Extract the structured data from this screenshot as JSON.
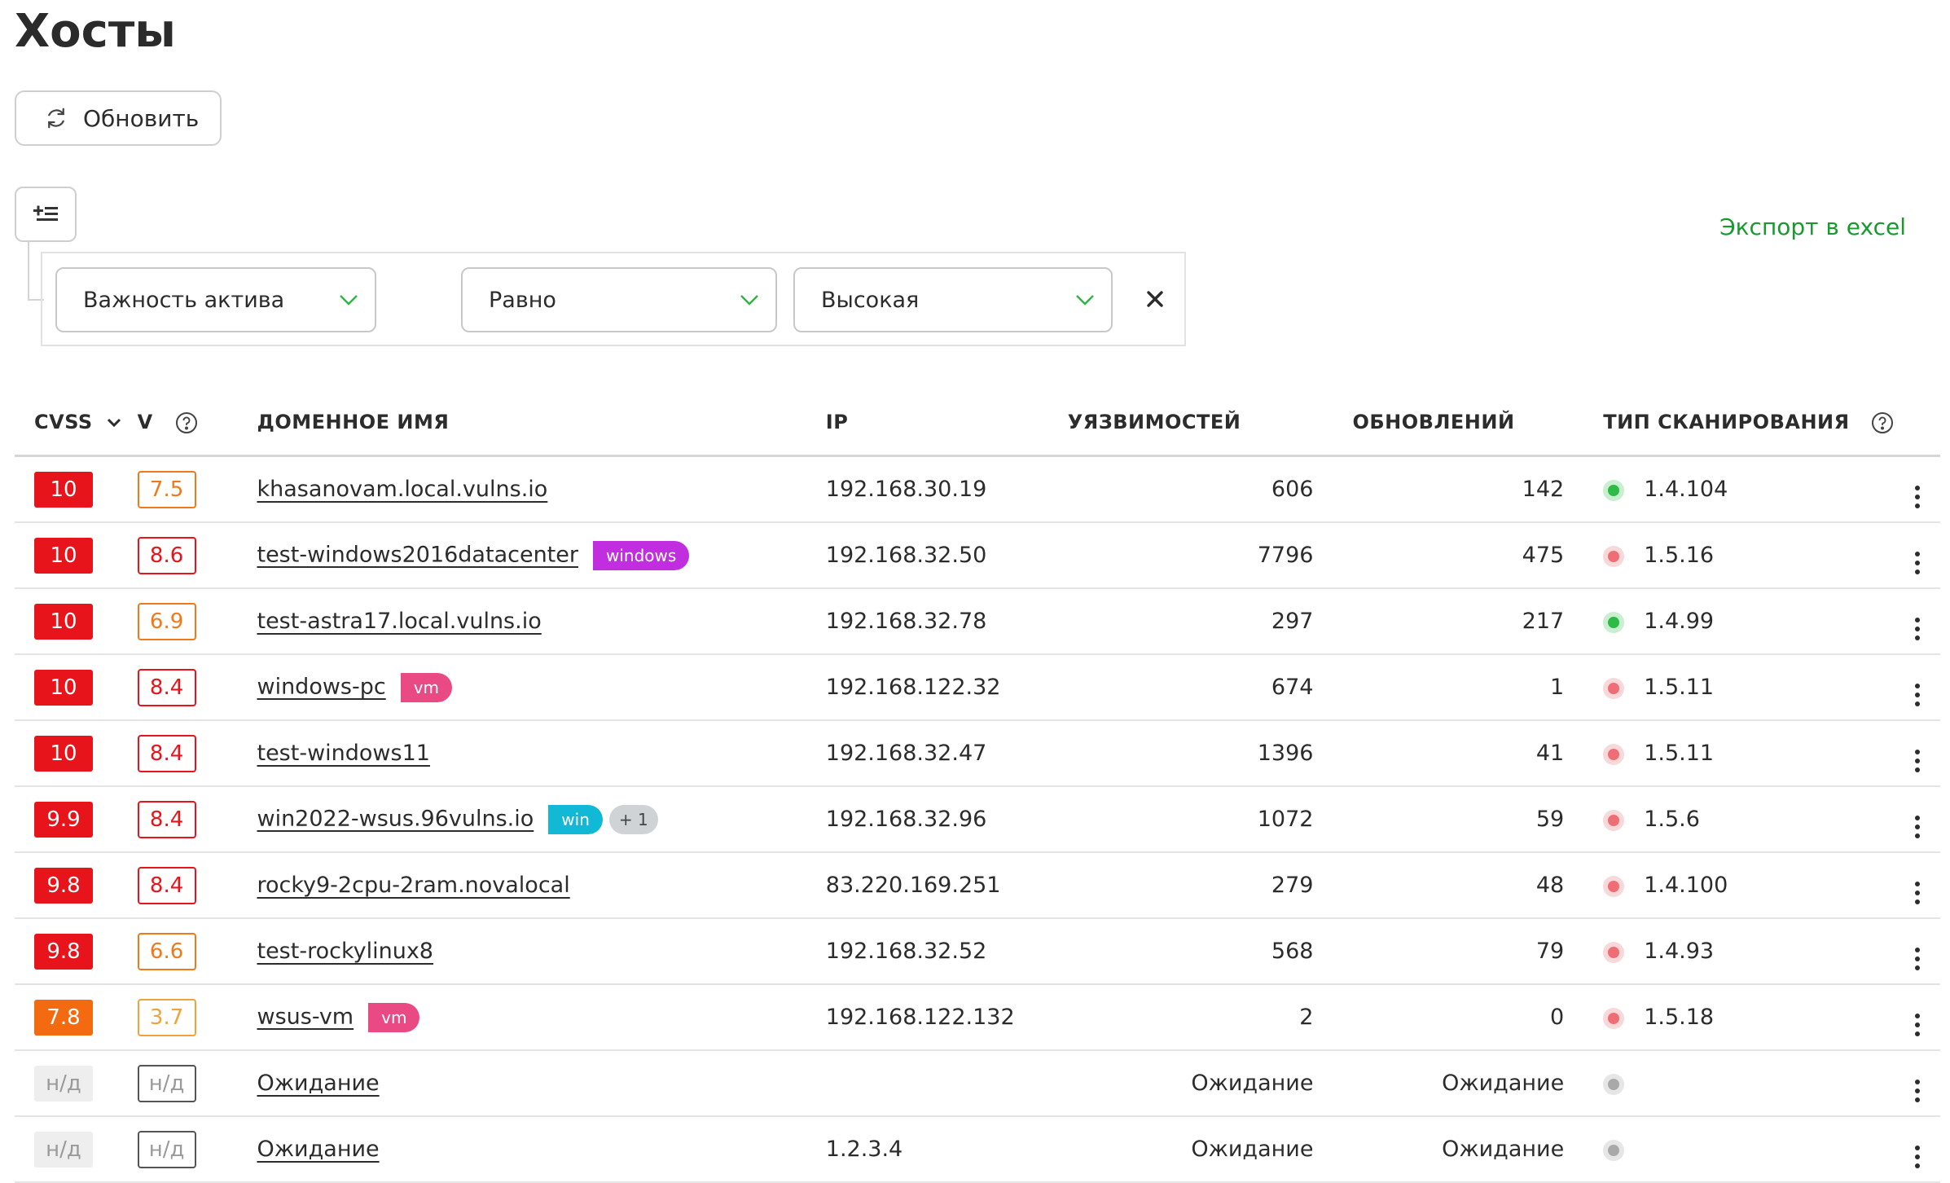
{
  "page": {
    "title": "Хосты"
  },
  "toolbar": {
    "refresh_label": "Обновить",
    "export_label": "Экспорт в excel"
  },
  "filter": {
    "field": "Важность актива",
    "operator": "Равно",
    "value": "Высокая"
  },
  "table": {
    "headers": {
      "cvss": "CVSS",
      "v": "V",
      "domain": "ДОМЕННОЕ ИМЯ",
      "ip": "IP",
      "vulns": "УЯЗВИМОСТЕЙ",
      "updates": "ОБНОВЛЕНИЙ",
      "scan_type": "ТИП СКАНИРОВАНИЯ"
    },
    "rows": [
      {
        "cvss": "10",
        "cvss_color": "#e8141b",
        "v": "7.5",
        "v_color": "#f07a1b",
        "name": "khasanovam.local.vulns.io",
        "tags": [],
        "ip": "192.168.30.19",
        "vulns": "606",
        "updates": "142",
        "status": "green",
        "scan": "1.4.104"
      },
      {
        "cvss": "10",
        "cvss_color": "#e8141b",
        "v": "8.6",
        "v_color": "#e8141b",
        "name": "test-windows2016datacenter",
        "tags": [
          {
            "label": "windows",
            "color": "#c02ee0"
          }
        ],
        "ip": "192.168.32.50",
        "vulns": "7796",
        "updates": "475",
        "status": "red",
        "scan": "1.5.16"
      },
      {
        "cvss": "10",
        "cvss_color": "#e8141b",
        "v": "6.9",
        "v_color": "#f07a1b",
        "name": "test-astra17.local.vulns.io",
        "tags": [],
        "ip": "192.168.32.78",
        "vulns": "297",
        "updates": "217",
        "status": "green",
        "scan": "1.4.99"
      },
      {
        "cvss": "10",
        "cvss_color": "#e8141b",
        "v": "8.4",
        "v_color": "#e8141b",
        "name": "windows-pc",
        "tags": [
          {
            "label": "vm",
            "color": "#ea4a84"
          }
        ],
        "ip": "192.168.122.32",
        "vulns": "674",
        "updates": "1",
        "status": "red",
        "scan": "1.5.11"
      },
      {
        "cvss": "10",
        "cvss_color": "#e8141b",
        "v": "8.4",
        "v_color": "#e8141b",
        "name": "test-windows11",
        "tags": [],
        "ip": "192.168.32.47",
        "vulns": "1396",
        "updates": "41",
        "status": "red",
        "scan": "1.5.11"
      },
      {
        "cvss": "9.9",
        "cvss_color": "#e8141b",
        "v": "8.4",
        "v_color": "#e8141b",
        "name": "win2022-wsus.96vulns.io",
        "tags": [
          {
            "label": "win",
            "color": "#12b9d6"
          }
        ],
        "more": "+ 1",
        "ip": "192.168.32.96",
        "vulns": "1072",
        "updates": "59",
        "status": "red",
        "scan": "1.5.6"
      },
      {
        "cvss": "9.8",
        "cvss_color": "#e8141b",
        "v": "8.4",
        "v_color": "#e8141b",
        "name": "rocky9-2cpu-2ram.novalocal",
        "tags": [],
        "ip": "83.220.169.251",
        "vulns": "279",
        "updates": "48",
        "status": "red",
        "scan": "1.4.100"
      },
      {
        "cvss": "9.8",
        "cvss_color": "#e8141b",
        "v": "6.6",
        "v_color": "#f07a1b",
        "name": "test-rockylinux8",
        "tags": [],
        "ip": "192.168.32.52",
        "vulns": "568",
        "updates": "79",
        "status": "red",
        "scan": "1.4.93"
      },
      {
        "cvss": "7.8",
        "cvss_color": "#f36a10",
        "v": "3.7",
        "v_color": "#f2a23a",
        "name": "wsus-vm",
        "tags": [
          {
            "label": "vm",
            "color": "#ea4a84"
          }
        ],
        "ip": "192.168.122.132",
        "vulns": "2",
        "updates": "0",
        "status": "red",
        "scan": "1.5.18"
      },
      {
        "cvss": "н/д",
        "cvss_color": "#eeeeee",
        "v": "н/д",
        "v_color": "#555555",
        "name": "Ожидание",
        "tags": [],
        "ip": "",
        "vulns": "Ожидание",
        "updates": "Ожидание",
        "status": "gray",
        "scan": ""
      },
      {
        "cvss": "н/д",
        "cvss_color": "#eeeeee",
        "v": "н/д",
        "v_color": "#555555",
        "name": "Ожидание",
        "tags": [],
        "ip": "1.2.3.4",
        "vulns": "Ожидание",
        "updates": "Ожидание",
        "status": "gray",
        "scan": ""
      }
    ]
  }
}
